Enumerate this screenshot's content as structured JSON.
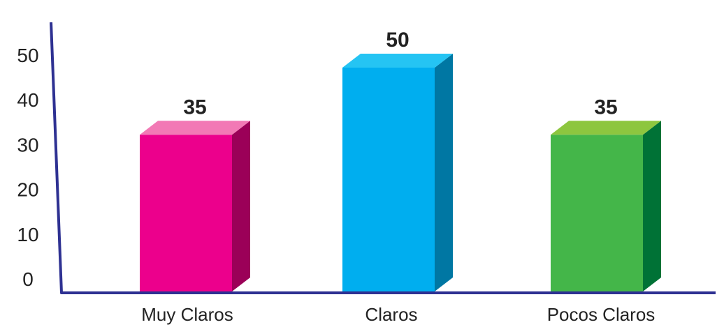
{
  "chart_data": {
    "type": "bar",
    "categories": [
      "Muy Claros",
      "Claros",
      "Pocos Claros"
    ],
    "values": [
      35,
      50,
      35
    ],
    "data_labels": [
      "35",
      "50",
      "35"
    ],
    "yticks": [
      "0",
      "10",
      "20",
      "30",
      "40",
      "50"
    ],
    "ylim": [
      0,
      60
    ],
    "grid": false,
    "legend": "none",
    "style": "3d",
    "axis_color": "#2e3192",
    "colors": [
      {
        "front": "#ec008c",
        "top": "#f279b5",
        "side": "#9b0058"
      },
      {
        "front": "#00aeef",
        "top": "#25c4f3",
        "side": "#0077a3"
      },
      {
        "front": "#44b649",
        "top": "#8dc63f",
        "side": "#007236"
      }
    ]
  }
}
